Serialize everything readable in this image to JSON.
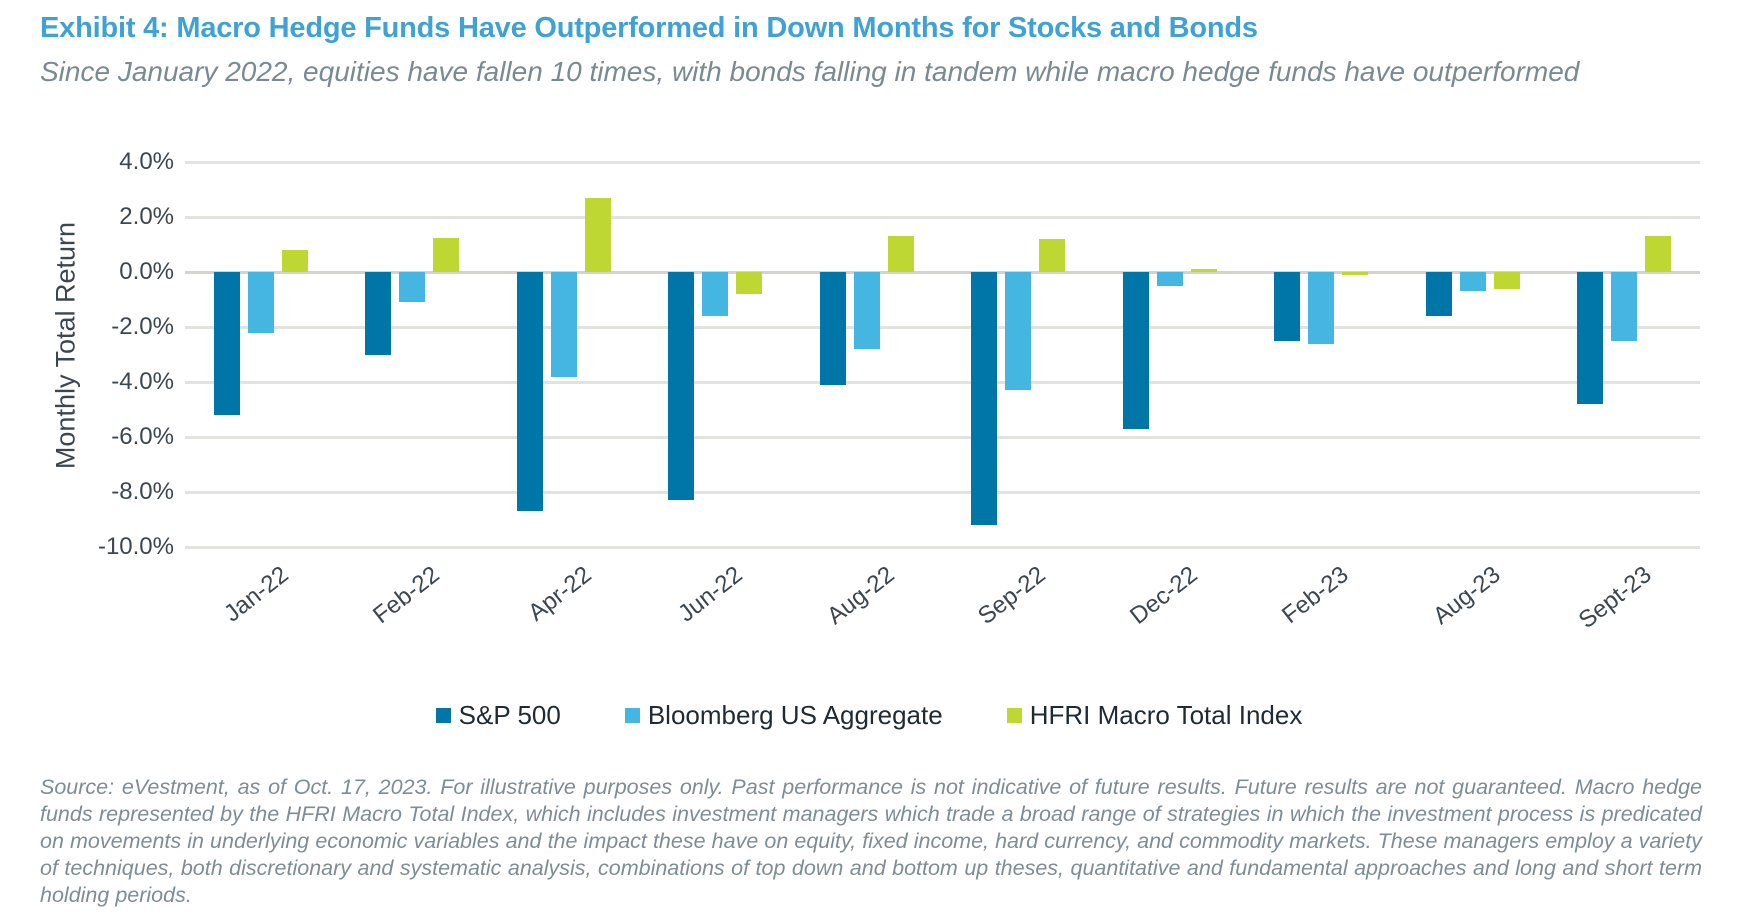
{
  "header": {
    "title": "Exhibit 4: Macro Hedge Funds Have Outperformed in Down Months for Stocks and Bonds",
    "subtitle": "Since January 2022, equities have fallen 10 times, with bonds falling in tandem while macro hedge funds have outperformed"
  },
  "chart_data": {
    "type": "bar",
    "title": "",
    "xlabel": "",
    "ylabel": "Monthly Total Return",
    "categories": [
      "Jan-22",
      "Feb-22",
      "Apr-22",
      "Jun-22",
      "Aug-22",
      "Sep-22",
      "Dec-22",
      "Feb-23",
      "Aug-23",
      "Sept-23"
    ],
    "series": [
      {
        "name": "S&P 500",
        "color": "#0076a8",
        "values": [
          -5.2,
          -3.0,
          -8.7,
          -8.3,
          -4.1,
          -9.2,
          -5.7,
          -2.5,
          -1.6,
          -4.8
        ]
      },
      {
        "name": "Bloomberg US Aggregate",
        "color": "#45b6e2",
        "values": [
          -2.2,
          -1.1,
          -3.8,
          -1.6,
          -2.8,
          -4.3,
          -0.5,
          -2.6,
          -0.7,
          -2.5
        ]
      },
      {
        "name": "HFRI Macro Total Index",
        "color": "#bed732",
        "values": [
          0.8,
          1.25,
          2.7,
          -0.8,
          1.3,
          1.2,
          0.1,
          -0.1,
          -0.6,
          1.3
        ]
      }
    ],
    "ylim": [
      -10,
      4
    ],
    "ytick_step": 2,
    "ytick_labels": [
      "4.0%",
      "2.0%",
      "0.0%",
      "-2.0%",
      "-4.0%",
      "-6.0%",
      "-8.0%",
      "-10.0%"
    ],
    "grid": true,
    "legend_position": "bottom"
  },
  "footnote": "Source: eVestment, as of Oct. 17, 2023. For illustrative purposes only. Past performance is not indicative of future results. Future results are not guaranteed. Macro hedge funds represented by the HFRI Macro Total Index, which includes investment managers which trade a broad range of strategies in which the investment process is predicated on movements in underlying economic variables and the impact these have on equity, fixed income, hard currency, and commodity markets. These managers employ a variety of techniques, both discretionary and systematic analysis, combinations of top down and bottom up theses, quantitative and fundamental approaches and long and short term holding periods."
}
